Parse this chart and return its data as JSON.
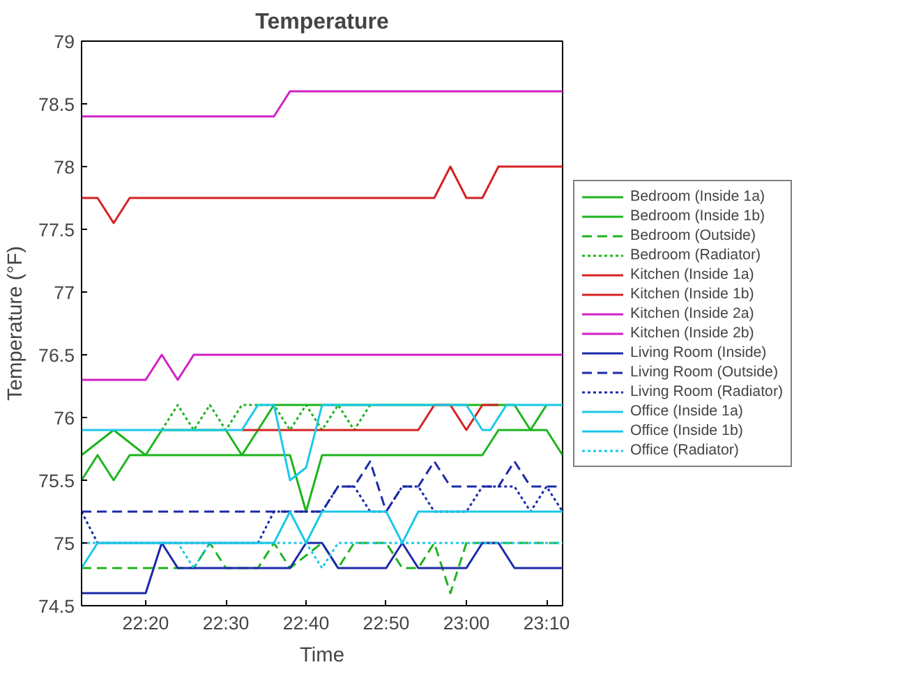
{
  "chart_data": {
    "type": "line",
    "title": "Temperature",
    "xlabel": "Time",
    "ylabel": "Temperature (°F)",
    "xlim": [
      22.2,
      23.2
    ],
    "ylim": [
      74.5,
      79
    ],
    "xticks": [
      {
        "value": 22.3333,
        "label": "22:20"
      },
      {
        "value": 22.5,
        "label": "22:30"
      },
      {
        "value": 22.6667,
        "label": "22:40"
      },
      {
        "value": 22.8333,
        "label": "22:50"
      },
      {
        "value": 23.0,
        "label": "23:00"
      },
      {
        "value": 23.1667,
        "label": "23:10"
      }
    ],
    "yticks": [
      74.5,
      75,
      75.5,
      76,
      76.5,
      77,
      77.5,
      78,
      78.5,
      79
    ],
    "grid": false,
    "legend": "right",
    "marker": "none",
    "series": [
      {
        "name": "Bedroom (Inside 1a)",
        "color": "#1db41d",
        "line_style": "solid",
        "x": [
          22.2,
          22.2333,
          22.2667,
          22.3,
          22.6333,
          22.6667,
          22.7,
          23.0333,
          23.0667,
          23.1667,
          23.2
        ],
        "values": [
          75.5,
          75.7,
          75.5,
          75.7,
          75.7,
          75.25,
          75.7,
          75.7,
          75.9,
          75.9,
          75.7
        ]
      },
      {
        "name": "Bedroom (Inside 1b)",
        "color": "#1db41d",
        "line_style": "solid",
        "x": [
          22.2,
          22.2667,
          22.3333,
          22.3667,
          22.5,
          22.5333,
          22.5667,
          22.6,
          23.1,
          23.1333,
          23.1667
        ],
        "values": [
          75.7,
          75.9,
          75.7,
          75.9,
          75.9,
          75.7,
          75.9,
          76.1,
          76.1,
          75.9,
          76.1
        ]
      },
      {
        "name": "Bedroom (Outside)",
        "color": "#1db41d",
        "line_style": "dashed",
        "x": [
          22.2,
          22.4333,
          22.4667,
          22.5,
          22.5667,
          22.6,
          22.6333,
          22.7,
          22.7333,
          22.7667,
          22.8333,
          22.8667,
          22.9,
          22.9333,
          22.9667,
          23.0,
          23.2
        ],
        "values": [
          74.8,
          74.8,
          75.0,
          74.8,
          74.8,
          75.0,
          74.8,
          75.0,
          74.8,
          75.0,
          75.0,
          74.8,
          74.8,
          75.0,
          74.6,
          75.0,
          75.0
        ]
      },
      {
        "name": "Bedroom (Radiator)",
        "color": "#1db41d",
        "line_style": "dotted",
        "x": [
          22.3667,
          22.4,
          22.4333,
          22.4667,
          22.5,
          22.5333,
          22.6,
          22.6333,
          22.6667,
          22.7,
          22.7333,
          22.7667,
          22.8
        ],
        "values": [
          75.9,
          76.1,
          75.9,
          76.1,
          75.9,
          76.1,
          76.1,
          75.9,
          76.1,
          75.9,
          76.1,
          75.9,
          76.1
        ]
      },
      {
        "name": "Kitchen (Inside 1a)",
        "color": "#d62020",
        "line_style": "solid",
        "x": [
          22.2,
          22.2333,
          22.2667,
          22.3,
          22.9333,
          22.9667,
          23.0,
          23.0333,
          23.0667,
          23.2
        ],
        "values": [
          77.75,
          77.75,
          77.55,
          77.75,
          77.75,
          78.0,
          77.75,
          77.75,
          78.0,
          78.0
        ]
      },
      {
        "name": "Kitchen (Inside 1b)",
        "color": "#d62020",
        "line_style": "solid",
        "x": [
          22.5333,
          22.9,
          22.9333,
          22.9667,
          23.0,
          23.0333,
          23.0667
        ],
        "values": [
          75.9,
          75.9,
          76.1,
          76.1,
          75.9,
          76.1,
          76.1
        ]
      },
      {
        "name": "Kitchen (Inside 2a)",
        "color": "#d21fc8",
        "line_style": "solid",
        "x": [
          22.2,
          22.3333,
          22.3667,
          22.4,
          22.4333,
          23.2
        ],
        "values": [
          76.3,
          76.3,
          76.5,
          76.3,
          76.5,
          76.5
        ]
      },
      {
        "name": "Kitchen (Inside 2b)",
        "color": "#d21fc8",
        "line_style": "solid",
        "x": [
          22.2,
          22.6,
          22.6333,
          23.2
        ],
        "values": [
          78.4,
          78.4,
          78.6,
          78.6
        ]
      },
      {
        "name": "Living Room (Inside)",
        "color": "#1a2aa8",
        "line_style": "solid",
        "x": [
          22.2,
          22.3333,
          22.3667,
          22.4,
          22.6333,
          22.6667,
          22.7,
          22.7333,
          22.8333,
          22.8667,
          22.9,
          23.0,
          23.0333,
          23.0667,
          23.1,
          23.2
        ],
        "values": [
          74.6,
          74.6,
          75.0,
          74.8,
          74.8,
          75.0,
          75.0,
          74.8,
          74.8,
          75.0,
          74.8,
          74.8,
          75.0,
          75.0,
          74.8,
          74.8
        ]
      },
      {
        "name": "Living Room (Outside)",
        "color": "#1a2aa8",
        "line_style": "dashed",
        "x": [
          22.2,
          22.7,
          22.7333,
          22.7667,
          22.8,
          22.8333,
          22.8667,
          22.9,
          22.9333,
          22.9667,
          23.0667,
          23.1,
          23.1333,
          23.2
        ],
        "values": [
          75.25,
          75.25,
          75.45,
          75.45,
          75.65,
          75.25,
          75.45,
          75.45,
          75.65,
          75.45,
          75.45,
          75.65,
          75.45,
          75.45
        ]
      },
      {
        "name": "Living Room (Radiator)",
        "color": "#1a2aa8",
        "line_style": "dotted",
        "x": [
          22.2,
          22.2333,
          22.5667,
          22.6,
          22.7,
          22.7333,
          22.7667,
          22.8,
          22.8333,
          22.8667,
          22.9,
          22.9333,
          23.0,
          23.0333,
          23.1,
          23.1333,
          23.1667,
          23.2
        ],
        "values": [
          75.25,
          75.0,
          75.0,
          75.25,
          75.25,
          75.45,
          75.45,
          75.25,
          75.25,
          75.45,
          75.45,
          75.25,
          75.25,
          75.45,
          75.45,
          75.25,
          75.45,
          75.25
        ]
      },
      {
        "name": "Office (Inside 1a)",
        "color": "#19c8e8",
        "line_style": "solid",
        "x": [
          22.2,
          22.5333,
          22.5667,
          22.6,
          22.6333,
          22.6667,
          22.7,
          23.0,
          23.0333,
          23.05,
          23.0833,
          23.2
        ],
        "values": [
          75.9,
          75.9,
          76.1,
          76.1,
          75.5,
          75.6,
          76.1,
          76.1,
          75.9,
          75.9,
          76.1,
          76.1
        ]
      },
      {
        "name": "Office (Inside 1b)",
        "color": "#19c8e8",
        "line_style": "solid",
        "x": [
          22.2,
          22.2333,
          22.6,
          22.6333,
          22.6667,
          22.7,
          22.8333,
          22.8667,
          22.9,
          23.2
        ],
        "values": [
          74.8,
          75.0,
          75.0,
          75.25,
          75.0,
          75.25,
          75.25,
          75.0,
          75.25,
          75.25
        ]
      },
      {
        "name": "Office (Radiator)",
        "color": "#19c8e8",
        "line_style": "dotted",
        "x": [
          22.2,
          22.4,
          22.4333,
          22.4667,
          22.6,
          22.6667,
          22.7,
          22.7333,
          23.2
        ],
        "values": [
          75.0,
          75.0,
          74.8,
          75.0,
          75.0,
          75.0,
          74.8,
          75.0,
          75.0
        ]
      }
    ]
  }
}
